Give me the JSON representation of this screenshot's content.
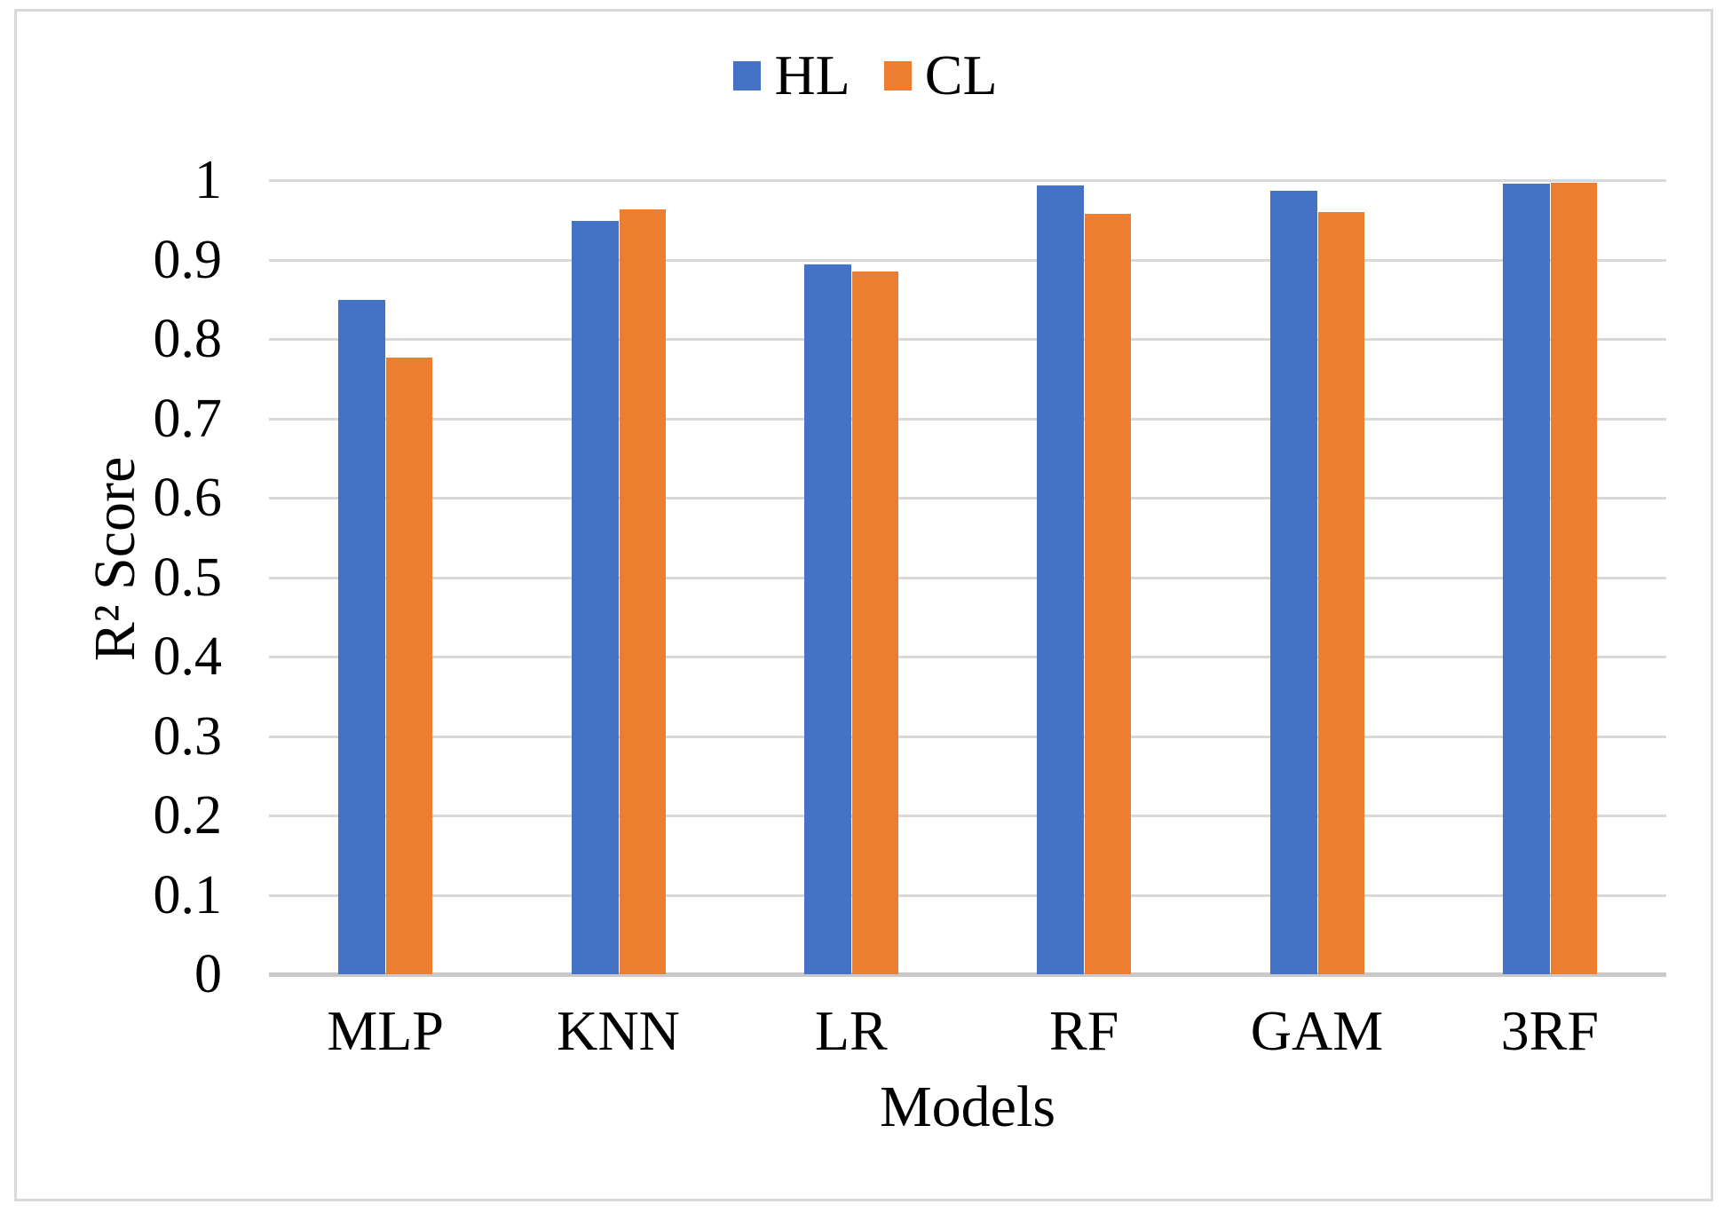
{
  "figure": {
    "background": "#ffffff",
    "border_color": "#d9d9d9",
    "text_color": "#000000",
    "gridline_color": "#d9d9d9",
    "baseline_color": "#c9c9c9"
  },
  "chart_data": {
    "type": "bar",
    "title": "",
    "xlabel": "Models",
    "ylabel": "R² Score",
    "categories": [
      "MLP",
      "KNN",
      "LR",
      "RF",
      "GAM",
      "3RF"
    ],
    "series": [
      {
        "name": "HL",
        "color": "#4472C4",
        "values": [
          0.849,
          0.949,
          0.894,
          0.993,
          0.987,
          0.996
        ]
      },
      {
        "name": "CL",
        "color": "#ED7D31",
        "values": [
          0.777,
          0.963,
          0.885,
          0.958,
          0.96,
          0.997
        ]
      }
    ],
    "ylim": [
      0,
      1
    ],
    "yticks": [
      0,
      0.1,
      0.2,
      0.3,
      0.4,
      0.5,
      0.6,
      0.7,
      0.8,
      0.9,
      1
    ],
    "ytick_labels": [
      "0",
      "0.1",
      "0.2",
      "0.3",
      "0.4",
      "0.5",
      "0.6",
      "0.7",
      "0.8",
      "0.9",
      "1"
    ],
    "grid": "horizontal",
    "legend_position": "top-center"
  }
}
